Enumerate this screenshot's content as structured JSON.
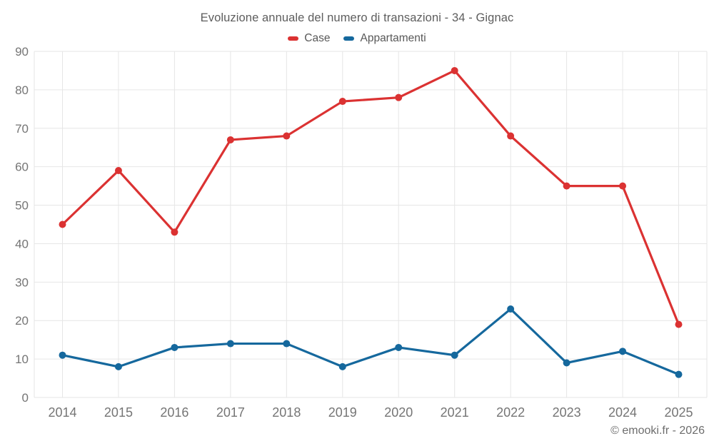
{
  "page": {
    "copyright": "© emooki.fr - 2026"
  },
  "chart_data": {
    "type": "line",
    "title": "Evoluzione annuale del numero di transazioni - 34 - Gignac",
    "categories": [
      "2014",
      "2015",
      "2016",
      "2017",
      "2018",
      "2019",
      "2020",
      "2021",
      "2022",
      "2023",
      "2024",
      "2025"
    ],
    "series": [
      {
        "name": "Case",
        "color": "#db3232",
        "values": [
          45,
          59,
          43,
          67,
          68,
          77,
          78,
          85,
          68,
          55,
          55,
          19
        ]
      },
      {
        "name": "Appartamenti",
        "color": "#15689d",
        "values": [
          11,
          8,
          13,
          14,
          14,
          8,
          13,
          11,
          23,
          9,
          12,
          6
        ]
      }
    ],
    "ylim": [
      0,
      90
    ],
    "ytick_step": 10,
    "yticks": [
      "0",
      "10",
      "20",
      "30",
      "40",
      "50",
      "60",
      "70",
      "80",
      "90"
    ],
    "grid": true,
    "gridline_color": "#e6e6e6",
    "legend_position": "top",
    "xlabel": "",
    "ylabel": ""
  }
}
